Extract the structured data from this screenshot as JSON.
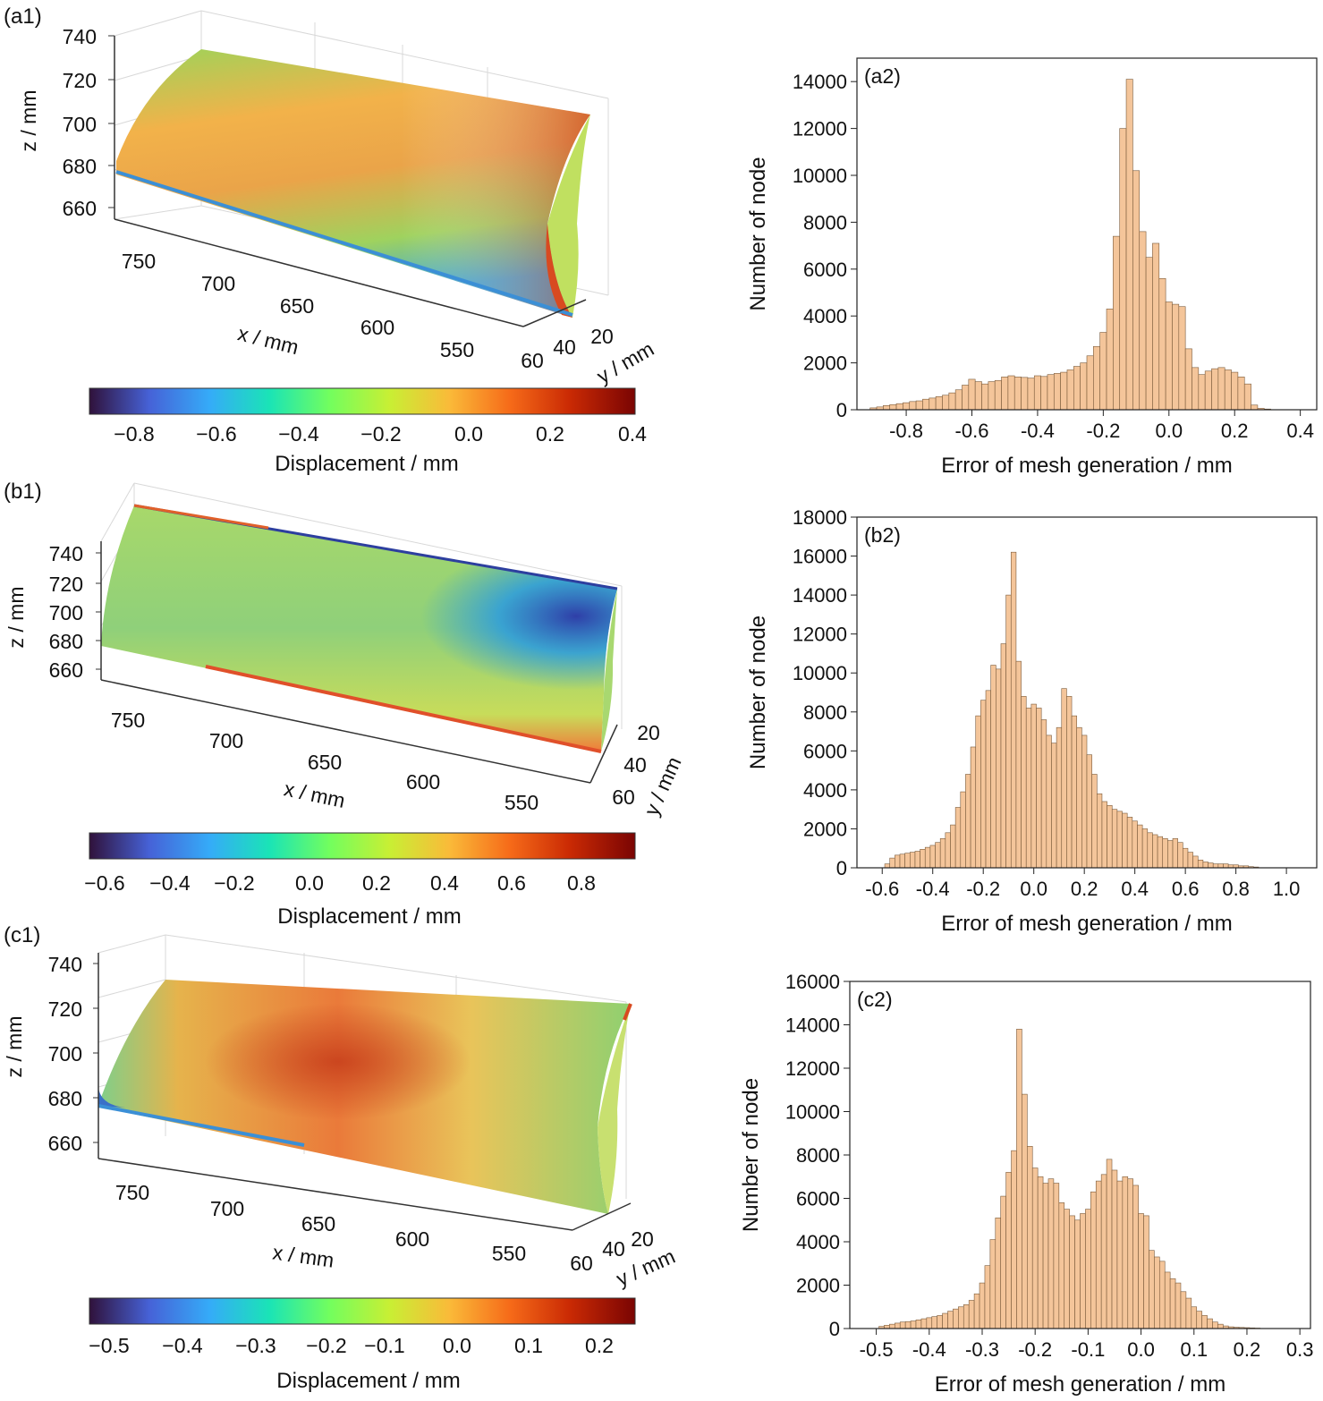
{
  "panels_3d": [
    {
      "label": "(a1)",
      "z_axis": {
        "label": "z / mm",
        "ticks": [
          "740",
          "720",
          "700",
          "680",
          "660"
        ]
      },
      "x_axis": {
        "label": "x / mm",
        "ticks": [
          "750",
          "700",
          "650",
          "600",
          "550"
        ]
      },
      "y_axis": {
        "label": "y / mm",
        "ticks": [
          "60",
          "40",
          "20"
        ]
      },
      "colorbar": {
        "label": "Displacement / mm",
        "ticks": [
          "−0.8",
          "−0.6",
          "−0.4",
          "−0.2",
          "0.0",
          "0.2",
          "0.4"
        ]
      }
    },
    {
      "label": "(b1)",
      "z_axis": {
        "label": "z / mm",
        "ticks": [
          "740",
          "720",
          "700",
          "680",
          "660"
        ]
      },
      "x_axis": {
        "label": "x / mm",
        "ticks": [
          "750",
          "700",
          "650",
          "600",
          "550"
        ]
      },
      "y_axis": {
        "label": "y / mm",
        "ticks": [
          "20",
          "40",
          "60"
        ]
      },
      "colorbar": {
        "label": "Displacement / mm",
        "ticks": [
          "−0.6",
          "−0.4",
          "−0.2",
          "0.0",
          "0.2",
          "0.4",
          "0.6",
          "0.8"
        ]
      }
    },
    {
      "label": "(c1)",
      "z_axis": {
        "label": "z / mm",
        "ticks": [
          "740",
          "720",
          "700",
          "680",
          "660"
        ]
      },
      "x_axis": {
        "label": "x / mm",
        "ticks": [
          "750",
          "700",
          "650",
          "600",
          "550"
        ]
      },
      "y_axis": {
        "label": "y / mm",
        "ticks": [
          "60",
          "40",
          "20"
        ]
      },
      "colorbar": {
        "label": "Displacement / mm",
        "ticks": [
          "−0.5",
          "−0.4",
          "−0.3",
          "−0.2",
          "−0.1",
          "0.0",
          "0.1",
          "0.2"
        ]
      }
    }
  ],
  "colormap": [
    "#30123b",
    "#4662d7",
    "#35abf8",
    "#1ae4b6",
    "#72fe5e",
    "#c8ef34",
    "#faba39",
    "#f66b19",
    "#ca2a04",
    "#7a0403"
  ],
  "chart_data": [
    {
      "type": "bar",
      "label": "(a2)",
      "xlabel": "Error of mesh generation / mm",
      "ylabel": "Number of node",
      "xlim": [
        -0.95,
        0.45
      ],
      "ylim": [
        0,
        15000
      ],
      "xticks": [
        "-0.8",
        "-0.6",
        "-0.4",
        "-0.2",
        "0.0",
        "0.2",
        "0.4"
      ],
      "yticks": [
        "0",
        "2000",
        "4000",
        "6000",
        "8000",
        "10000",
        "12000",
        "14000"
      ],
      "bar_color": "#f4c59a",
      "bins": [
        {
          "x": -0.9,
          "y": 80
        },
        {
          "x": -0.88,
          "y": 120
        },
        {
          "x": -0.86,
          "y": 180
        },
        {
          "x": -0.84,
          "y": 220
        },
        {
          "x": -0.82,
          "y": 260
        },
        {
          "x": -0.8,
          "y": 300
        },
        {
          "x": -0.78,
          "y": 350
        },
        {
          "x": -0.76,
          "y": 380
        },
        {
          "x": -0.74,
          "y": 450
        },
        {
          "x": -0.72,
          "y": 500
        },
        {
          "x": -0.7,
          "y": 560
        },
        {
          "x": -0.68,
          "y": 620
        },
        {
          "x": -0.66,
          "y": 720
        },
        {
          "x": -0.64,
          "y": 850
        },
        {
          "x": -0.62,
          "y": 1050
        },
        {
          "x": -0.6,
          "y": 1300
        },
        {
          "x": -0.58,
          "y": 1200
        },
        {
          "x": -0.56,
          "y": 1100
        },
        {
          "x": -0.54,
          "y": 1200
        },
        {
          "x": -0.52,
          "y": 1250
        },
        {
          "x": -0.5,
          "y": 1400
        },
        {
          "x": -0.48,
          "y": 1450
        },
        {
          "x": -0.46,
          "y": 1400
        },
        {
          "x": -0.44,
          "y": 1380
        },
        {
          "x": -0.42,
          "y": 1350
        },
        {
          "x": -0.4,
          "y": 1450
        },
        {
          "x": -0.38,
          "y": 1420
        },
        {
          "x": -0.36,
          "y": 1500
        },
        {
          "x": -0.34,
          "y": 1550
        },
        {
          "x": -0.32,
          "y": 1600
        },
        {
          "x": -0.3,
          "y": 1700
        },
        {
          "x": -0.28,
          "y": 1850
        },
        {
          "x": -0.26,
          "y": 2000
        },
        {
          "x": -0.24,
          "y": 2300
        },
        {
          "x": -0.22,
          "y": 2700
        },
        {
          "x": -0.2,
          "y": 3300
        },
        {
          "x": -0.18,
          "y": 4300
        },
        {
          "x": -0.16,
          "y": 7400
        },
        {
          "x": -0.14,
          "y": 12000
        },
        {
          "x": -0.12,
          "y": 14100
        },
        {
          "x": -0.1,
          "y": 10200
        },
        {
          "x": -0.08,
          "y": 7600
        },
        {
          "x": -0.06,
          "y": 6500
        },
        {
          "x": -0.04,
          "y": 7100
        },
        {
          "x": -0.02,
          "y": 5600
        },
        {
          "x": 0.0,
          "y": 4600
        },
        {
          "x": 0.02,
          "y": 4500
        },
        {
          "x": 0.04,
          "y": 4400
        },
        {
          "x": 0.06,
          "y": 2600
        },
        {
          "x": 0.08,
          "y": 1800
        },
        {
          "x": 0.1,
          "y": 1500
        },
        {
          "x": 0.12,
          "y": 1650
        },
        {
          "x": 0.14,
          "y": 1750
        },
        {
          "x": 0.16,
          "y": 1800
        },
        {
          "x": 0.18,
          "y": 1700
        },
        {
          "x": 0.2,
          "y": 1600
        },
        {
          "x": 0.22,
          "y": 1400
        },
        {
          "x": 0.24,
          "y": 1100
        },
        {
          "x": 0.26,
          "y": 200
        },
        {
          "x": 0.28,
          "y": 60
        },
        {
          "x": 0.3,
          "y": 30
        }
      ]
    },
    {
      "type": "bar",
      "label": "(b2)",
      "xlabel": "Error of mesh generation / mm",
      "ylabel": "Number of node",
      "xlim": [
        -0.7,
        1.12
      ],
      "ylim": [
        0,
        18000
      ],
      "xticks": [
        "-0.6",
        "-0.4",
        "-0.2",
        "0.0",
        "0.2",
        "0.4",
        "0.6",
        "0.8",
        "1.0"
      ],
      "yticks": [
        "0",
        "2000",
        "4000",
        "6000",
        "8000",
        "10000",
        "12000",
        "14000",
        "16000",
        "18000"
      ],
      "bar_color": "#f4c59a",
      "bins": [
        {
          "x": -0.58,
          "y": 200
        },
        {
          "x": -0.56,
          "y": 500
        },
        {
          "x": -0.54,
          "y": 650
        },
        {
          "x": -0.52,
          "y": 700
        },
        {
          "x": -0.5,
          "y": 750
        },
        {
          "x": -0.48,
          "y": 800
        },
        {
          "x": -0.46,
          "y": 850
        },
        {
          "x": -0.44,
          "y": 950
        },
        {
          "x": -0.42,
          "y": 1050
        },
        {
          "x": -0.4,
          "y": 1150
        },
        {
          "x": -0.38,
          "y": 1300
        },
        {
          "x": -0.36,
          "y": 1500
        },
        {
          "x": -0.34,
          "y": 1800
        },
        {
          "x": -0.32,
          "y": 2200
        },
        {
          "x": -0.3,
          "y": 3100
        },
        {
          "x": -0.28,
          "y": 3900
        },
        {
          "x": -0.26,
          "y": 4800
        },
        {
          "x": -0.24,
          "y": 6200
        },
        {
          "x": -0.22,
          "y": 7800
        },
        {
          "x": -0.2,
          "y": 8600
        },
        {
          "x": -0.18,
          "y": 9100
        },
        {
          "x": -0.16,
          "y": 10400
        },
        {
          "x": -0.14,
          "y": 10200
        },
        {
          "x": -0.12,
          "y": 11500
        },
        {
          "x": -0.1,
          "y": 14000
        },
        {
          "x": -0.08,
          "y": 16200
        },
        {
          "x": -0.06,
          "y": 10600
        },
        {
          "x": -0.04,
          "y": 8800
        },
        {
          "x": -0.02,
          "y": 8200
        },
        {
          "x": 0.0,
          "y": 8400
        },
        {
          "x": 0.02,
          "y": 8200
        },
        {
          "x": 0.04,
          "y": 7600
        },
        {
          "x": 0.06,
          "y": 6800
        },
        {
          "x": 0.08,
          "y": 6400
        },
        {
          "x": 0.1,
          "y": 7200
        },
        {
          "x": 0.12,
          "y": 9200
        },
        {
          "x": 0.14,
          "y": 8800
        },
        {
          "x": 0.16,
          "y": 7800
        },
        {
          "x": 0.18,
          "y": 7200
        },
        {
          "x": 0.2,
          "y": 6800
        },
        {
          "x": 0.22,
          "y": 5800
        },
        {
          "x": 0.24,
          "y": 4800
        },
        {
          "x": 0.26,
          "y": 3800
        },
        {
          "x": 0.28,
          "y": 3400
        },
        {
          "x": 0.3,
          "y": 3200
        },
        {
          "x": 0.32,
          "y": 3000
        },
        {
          "x": 0.34,
          "y": 2900
        },
        {
          "x": 0.36,
          "y": 2800
        },
        {
          "x": 0.38,
          "y": 2600
        },
        {
          "x": 0.4,
          "y": 2400
        },
        {
          "x": 0.42,
          "y": 2200
        },
        {
          "x": 0.44,
          "y": 2000
        },
        {
          "x": 0.46,
          "y": 1800
        },
        {
          "x": 0.48,
          "y": 1700
        },
        {
          "x": 0.5,
          "y": 1600
        },
        {
          "x": 0.52,
          "y": 1500
        },
        {
          "x": 0.54,
          "y": 1400
        },
        {
          "x": 0.56,
          "y": 1500
        },
        {
          "x": 0.58,
          "y": 1300
        },
        {
          "x": 0.6,
          "y": 1000
        },
        {
          "x": 0.62,
          "y": 800
        },
        {
          "x": 0.64,
          "y": 600
        },
        {
          "x": 0.66,
          "y": 400
        },
        {
          "x": 0.68,
          "y": 300
        },
        {
          "x": 0.7,
          "y": 250
        },
        {
          "x": 0.72,
          "y": 200
        },
        {
          "x": 0.74,
          "y": 200
        },
        {
          "x": 0.76,
          "y": 200
        },
        {
          "x": 0.78,
          "y": 150
        },
        {
          "x": 0.8,
          "y": 150
        },
        {
          "x": 0.82,
          "y": 100
        },
        {
          "x": 0.84,
          "y": 100
        },
        {
          "x": 0.86,
          "y": 60
        },
        {
          "x": 0.88,
          "y": 40
        }
      ]
    },
    {
      "type": "bar",
      "label": "(c2)",
      "xlabel": "Error of mesh generation / mm",
      "ylabel": "Number of node",
      "xlim": [
        -0.55,
        0.32
      ],
      "ylim": [
        0,
        16000
      ],
      "xticks": [
        "-0.5",
        "-0.4",
        "-0.3",
        "-0.2",
        "-0.1",
        "0.0",
        "0.1",
        "0.2",
        "0.3"
      ],
      "yticks": [
        "0",
        "2000",
        "4000",
        "6000",
        "8000",
        "10000",
        "12000",
        "14000",
        "16000"
      ],
      "bar_color": "#f4c59a",
      "bins": [
        {
          "x": -0.49,
          "y": 100
        },
        {
          "x": -0.48,
          "y": 150
        },
        {
          "x": -0.47,
          "y": 200
        },
        {
          "x": -0.46,
          "y": 250
        },
        {
          "x": -0.45,
          "y": 300
        },
        {
          "x": -0.44,
          "y": 320
        },
        {
          "x": -0.43,
          "y": 350
        },
        {
          "x": -0.42,
          "y": 400
        },
        {
          "x": -0.41,
          "y": 450
        },
        {
          "x": -0.4,
          "y": 500
        },
        {
          "x": -0.39,
          "y": 550
        },
        {
          "x": -0.38,
          "y": 600
        },
        {
          "x": -0.37,
          "y": 700
        },
        {
          "x": -0.36,
          "y": 800
        },
        {
          "x": -0.35,
          "y": 900
        },
        {
          "x": -0.34,
          "y": 1000
        },
        {
          "x": -0.33,
          "y": 1100
        },
        {
          "x": -0.32,
          "y": 1300
        },
        {
          "x": -0.31,
          "y": 1600
        },
        {
          "x": -0.3,
          "y": 2100
        },
        {
          "x": -0.29,
          "y": 2900
        },
        {
          "x": -0.28,
          "y": 4100
        },
        {
          "x": -0.27,
          "y": 5100
        },
        {
          "x": -0.26,
          "y": 6100
        },
        {
          "x": -0.25,
          "y": 7200
        },
        {
          "x": -0.24,
          "y": 8200
        },
        {
          "x": -0.23,
          "y": 13800
        },
        {
          "x": -0.22,
          "y": 10800
        },
        {
          "x": -0.21,
          "y": 8400
        },
        {
          "x": -0.2,
          "y": 7400
        },
        {
          "x": -0.19,
          "y": 7000
        },
        {
          "x": -0.18,
          "y": 6700
        },
        {
          "x": -0.17,
          "y": 6900
        },
        {
          "x": -0.16,
          "y": 6700
        },
        {
          "x": -0.15,
          "y": 5800
        },
        {
          "x": -0.14,
          "y": 5500
        },
        {
          "x": -0.13,
          "y": 5200
        },
        {
          "x": -0.12,
          "y": 5000
        },
        {
          "x": -0.11,
          "y": 5300
        },
        {
          "x": -0.1,
          "y": 5500
        },
        {
          "x": -0.09,
          "y": 6300
        },
        {
          "x": -0.08,
          "y": 6800
        },
        {
          "x": -0.07,
          "y": 7100
        },
        {
          "x": -0.06,
          "y": 7800
        },
        {
          "x": -0.05,
          "y": 7300
        },
        {
          "x": -0.04,
          "y": 6800
        },
        {
          "x": -0.03,
          "y": 7000
        },
        {
          "x": -0.02,
          "y": 6900
        },
        {
          "x": -0.01,
          "y": 6600
        },
        {
          "x": 0.0,
          "y": 5300
        },
        {
          "x": 0.01,
          "y": 5200
        },
        {
          "x": 0.02,
          "y": 3600
        },
        {
          "x": 0.03,
          "y": 3300
        },
        {
          "x": 0.04,
          "y": 3100
        },
        {
          "x": 0.05,
          "y": 2600
        },
        {
          "x": 0.06,
          "y": 2300
        },
        {
          "x": 0.07,
          "y": 2100
        },
        {
          "x": 0.08,
          "y": 1700
        },
        {
          "x": 0.09,
          "y": 1400
        },
        {
          "x": 0.1,
          "y": 1000
        },
        {
          "x": 0.11,
          "y": 800
        },
        {
          "x": 0.12,
          "y": 600
        },
        {
          "x": 0.13,
          "y": 450
        },
        {
          "x": 0.14,
          "y": 300
        },
        {
          "x": 0.15,
          "y": 200
        },
        {
          "x": 0.16,
          "y": 120
        },
        {
          "x": 0.17,
          "y": 80
        },
        {
          "x": 0.18,
          "y": 60
        },
        {
          "x": 0.19,
          "y": 50
        },
        {
          "x": 0.2,
          "y": 40
        },
        {
          "x": 0.21,
          "y": 30
        },
        {
          "x": 0.22,
          "y": 20
        }
      ]
    }
  ]
}
